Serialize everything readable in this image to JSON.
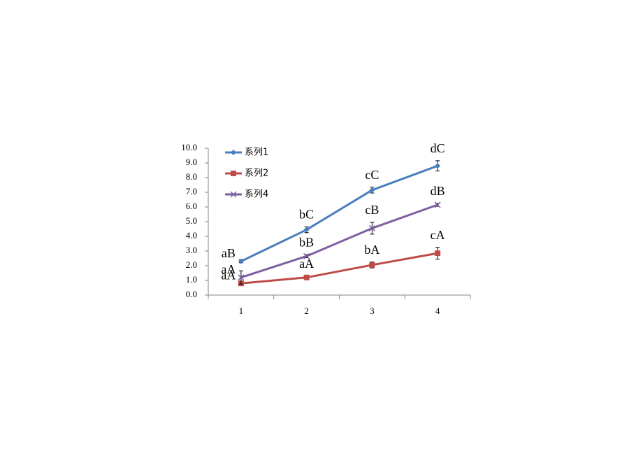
{
  "chart_data": {
    "type": "line",
    "categories": [
      "1",
      "2",
      "3",
      "4"
    ],
    "series": [
      {
        "name": "系列1",
        "color": "#4a7ebb",
        "marker": "diamond",
        "values": [
          2.3,
          4.45,
          7.15,
          8.8
        ],
        "errors": [
          0.1,
          0.2,
          0.2,
          0.35
        ],
        "letters": [
          "aB",
          "bC",
          "cC",
          "dC"
        ]
      },
      {
        "name": "系列2",
        "color": "#be4b48",
        "marker": "square",
        "values": [
          0.8,
          1.2,
          2.05,
          2.85
        ],
        "errors": [
          0.1,
          0.1,
          0.2,
          0.4
        ],
        "letters": [
          "aA",
          "aA",
          "bA",
          "cA"
        ]
      },
      {
        "name": "系列4",
        "color": "#7d60a0",
        "marker": "x",
        "values": [
          1.2,
          2.65,
          4.55,
          6.15
        ],
        "errors": [
          0.45,
          0.1,
          0.4,
          0.1
        ],
        "letters": [
          "aA",
          "bB",
          "cB",
          "dB"
        ]
      }
    ],
    "ylim": [
      0,
      10
    ],
    "yticks": [
      {
        "value": 0,
        "label": "0.0"
      },
      {
        "value": 1,
        "label": "1.0"
      },
      {
        "value": 2,
        "label": "2.0"
      },
      {
        "value": 3,
        "label": "3.0"
      },
      {
        "value": 4,
        "label": "4.0"
      },
      {
        "value": 5,
        "label": "5.0"
      },
      {
        "value": 6,
        "label": "6.0"
      },
      {
        "value": 7,
        "label": "7.0"
      },
      {
        "value": 8,
        "label": "8.0"
      },
      {
        "value": 9,
        "label": "9.0"
      },
      {
        "value": 10,
        "label": "10.0"
      }
    ],
    "grid": false,
    "legend": "top-left"
  }
}
